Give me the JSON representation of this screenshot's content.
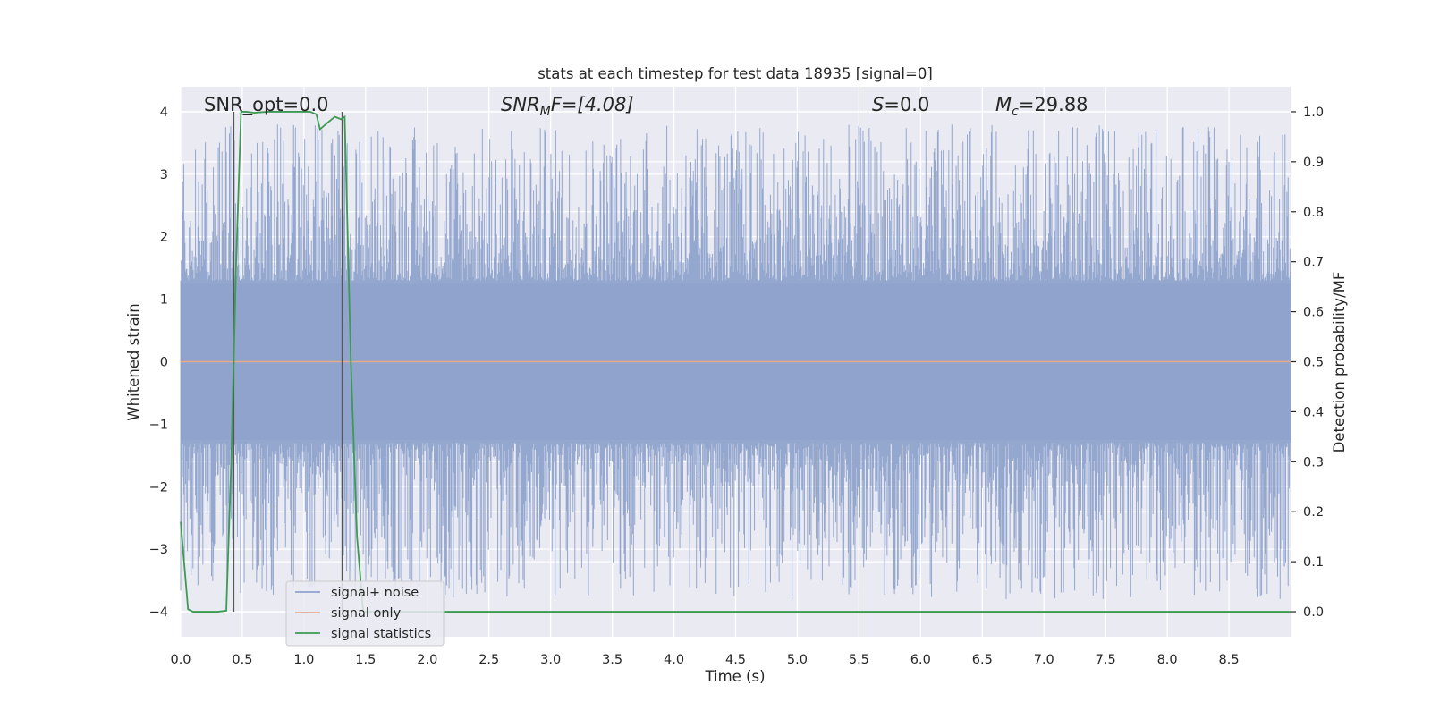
{
  "chart_data": {
    "type": "line",
    "title": "stats at each timestep for test data 18935 [signal=0]",
    "xlabel": "Time (s)",
    "ylabel_left": "Whitened strain",
    "ylabel_right": "Detection probability/MF",
    "xlim": [
      0.0,
      9.0
    ],
    "ylim_left": [
      -4.4,
      4.4
    ],
    "ylim_right": [
      -0.05,
      1.05
    ],
    "xticks": [
      0.0,
      0.5,
      1.0,
      1.5,
      2.0,
      2.5,
      3.0,
      3.5,
      4.0,
      4.5,
      5.0,
      5.5,
      6.0,
      6.5,
      7.0,
      7.5,
      8.0,
      8.5
    ],
    "xtick_labels": [
      "0.0",
      "0.5",
      "1.0",
      "1.5",
      "2.0",
      "2.5",
      "3.0",
      "3.5",
      "4.0",
      "4.5",
      "5.0",
      "5.5",
      "6.0",
      "6.5",
      "7.0",
      "7.5",
      "8.0",
      "8.5"
    ],
    "yticks_left": [
      -4,
      -3,
      -2,
      -1,
      0,
      1,
      2,
      3,
      4
    ],
    "ytick_labels_left": [
      "−4",
      "−3",
      "−2",
      "−1",
      "0",
      "1",
      "2",
      "3",
      "4"
    ],
    "yticks_right": [
      0.0,
      0.1,
      0.2,
      0.3,
      0.4,
      0.5,
      0.6,
      0.7,
      0.8,
      0.9,
      1.0
    ],
    "ytick_labels_right": [
      "0.0",
      "0.1",
      "0.2",
      "0.3",
      "0.4",
      "0.5",
      "0.6",
      "0.7",
      "0.8",
      "0.9",
      "1.0"
    ],
    "grid": true,
    "legend_placement": "lower-left",
    "annotations": {
      "snr_opt": "SNR_opt=0.0",
      "snr_mf_prefix": "SNR",
      "snr_mf_sub": "M",
      "snr_mf_suffix": "F=[4.08]",
      "s_prefix": "S",
      "s_suffix": "=0.0",
      "mc_prefix": "M",
      "mc_sub": "c",
      "mc_suffix": "=29.88"
    },
    "series": [
      {
        "name": "signal+ noise",
        "color": "#8fa3cc",
        "axis": "left",
        "description_values": {
          "envelope_typical_pos": [
            1.4,
            2.6
          ],
          "envelope_typical_neg": [
            -1.4,
            -2.6
          ],
          "max": 4.0,
          "min": -4.0
        }
      },
      {
        "name": "signal only",
        "color": "#e8a98a",
        "axis": "left",
        "x": [
          0.0,
          9.0
        ],
        "y": [
          0.0,
          0.0
        ]
      },
      {
        "name": "signal statistics",
        "color": "#3d9a52",
        "axis": "right",
        "x": [
          0.0,
          0.06,
          0.1,
          0.15,
          0.2,
          0.3,
          0.37,
          0.41,
          0.45,
          0.49,
          0.53,
          0.6,
          0.7,
          0.8,
          0.9,
          1.0,
          1.05,
          1.1,
          1.13,
          1.2,
          1.25,
          1.3,
          1.33,
          1.38,
          1.43,
          1.48,
          1.55,
          2.0,
          3.0,
          4.0,
          5.0,
          6.0,
          7.0,
          8.0,
          9.0
        ],
        "y": [
          0.18,
          0.005,
          0.0,
          0.0,
          0.0,
          0.0,
          0.002,
          0.3,
          0.7,
          1.0,
          1.0,
          0.998,
          1.0,
          1.0,
          1.0,
          1.0,
          1.0,
          0.995,
          0.965,
          0.98,
          0.99,
          0.985,
          0.99,
          0.5,
          0.15,
          0.0,
          0.0,
          0.0,
          0.0,
          0.0,
          0.0,
          0.0,
          0.0,
          0.0,
          0.0
        ]
      },
      {
        "name": "",
        "color": "#555555",
        "axis": "left",
        "vertical_lines": [
          {
            "x": 0.43,
            "y0": -4.0,
            "y1": 4.0
          },
          {
            "x": 1.31,
            "y0": -4.0,
            "y1": 4.0
          }
        ]
      }
    ]
  }
}
